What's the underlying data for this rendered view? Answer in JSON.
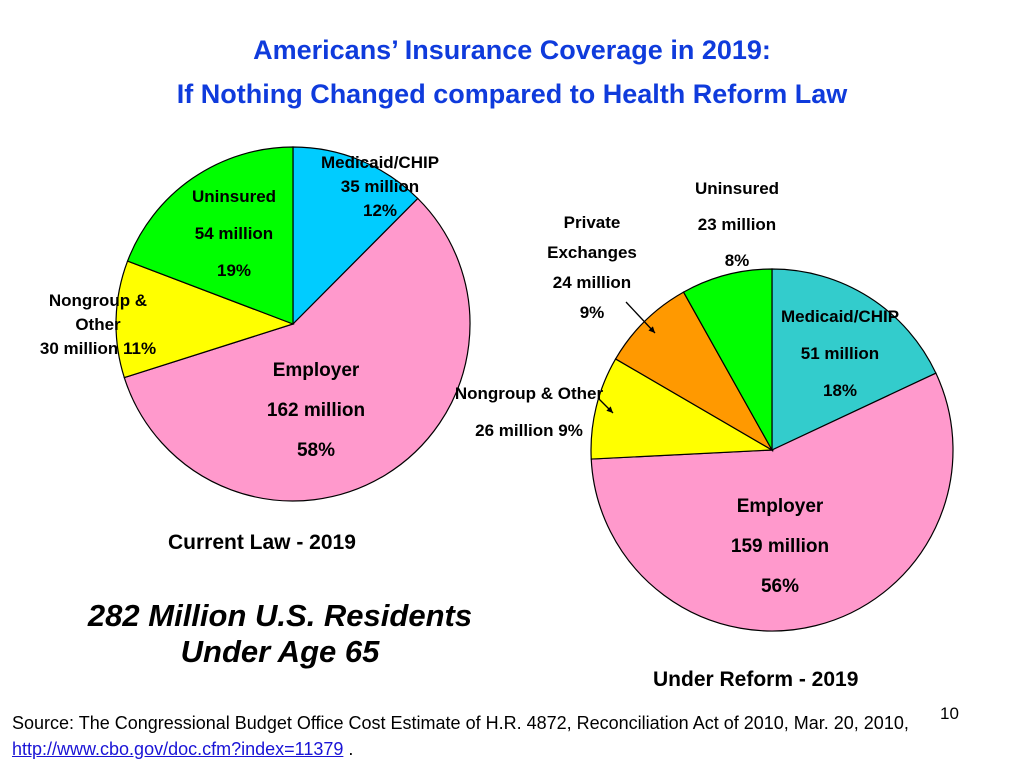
{
  "title": {
    "line1": "Americans’ Insurance Coverage in 2019:",
    "line2": "If Nothing Changed compared to Health Reform Law"
  },
  "chart_data": [
    {
      "type": "pie",
      "caption": "Current Law - 2019",
      "slices": [
        {
          "name": "Medicaid/CHIP",
          "millions": 35,
          "percent": 12,
          "color": "#00ccff",
          "label_lines": [
            "Medicaid/CHIP",
            "35 million",
            "12%"
          ]
        },
        {
          "name": "Employer",
          "millions": 162,
          "percent": 58,
          "color": "#ff99cc",
          "label_lines": [
            "Employer",
            "162 million",
            "58%"
          ]
        },
        {
          "name": "Nongroup & Other",
          "millions": 30,
          "percent": 11,
          "color": "#ffff00",
          "label_lines": [
            "Nongroup  &",
            "Other",
            "30 million  11%"
          ]
        },
        {
          "name": "Uninsured",
          "millions": 54,
          "percent": 19,
          "color": "#00ff00",
          "label_lines": [
            "Uninsured",
            "54 million",
            "19%"
          ]
        }
      ]
    },
    {
      "type": "pie",
      "caption": "Under Reform - 2019",
      "slices": [
        {
          "name": "Medicaid/CHIP",
          "millions": 51,
          "percent": 18,
          "color": "#33cccc",
          "label_lines": [
            "Medicaid/CHIP",
            "51 million",
            "18%"
          ]
        },
        {
          "name": "Employer",
          "millions": 159,
          "percent": 56,
          "color": "#ff99cc",
          "label_lines": [
            "Employer",
            "159 million",
            "56%"
          ]
        },
        {
          "name": "Nongroup & Other",
          "millions": 26,
          "percent": 9,
          "color": "#ffff00",
          "label_lines": [
            "Nongroup & Other",
            "26 million  9%"
          ]
        },
        {
          "name": "Private Exchanges",
          "millions": 24,
          "percent": 9,
          "color": "#ff9900",
          "label_lines": [
            "Private",
            "Exchanges",
            "24 million",
            "9%"
          ]
        },
        {
          "name": "Uninsured",
          "millions": 23,
          "percent": 8,
          "color": "#00ff00",
          "label_lines": [
            "Uninsured",
            "23 million",
            "8%"
          ]
        }
      ]
    }
  ],
  "note": {
    "line1": "282 Million U.S. Residents",
    "line2": "Under Age 65"
  },
  "source": {
    "prefix": "Source: The Congressional Budget Office Cost Estimate of H.R. 4872, Reconciliation Act of 2010, Mar. 20, 2010, ",
    "link": "http://www.cbo.gov/doc.cfm?index=11379",
    "suffix": " ."
  },
  "slide_number": "10"
}
